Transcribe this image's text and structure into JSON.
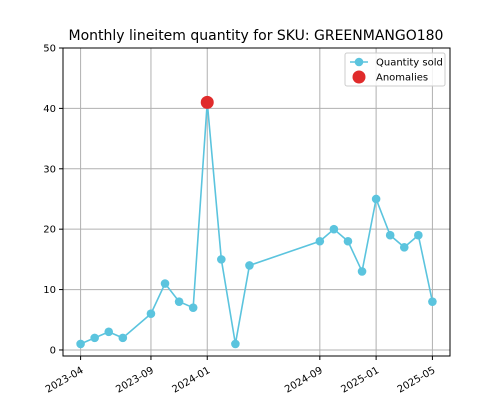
{
  "chart_data": {
    "type": "line",
    "title": "Monthly lineitem quantity for SKU: GREENMANGO180",
    "xlabel": "",
    "ylabel": "",
    "x_ticks": [
      "2023-04",
      "2023-09",
      "2024-01",
      "2024-09",
      "2025-01",
      "2025-05"
    ],
    "y_ticks": [
      0,
      10,
      20,
      30,
      40,
      50
    ],
    "ylim": [
      -1,
      50
    ],
    "grid": true,
    "legend_position": "top-right",
    "series": [
      {
        "name": "Quantity sold",
        "color": "#5bc4de",
        "points": [
          {
            "x": "2023-04",
            "y": 1
          },
          {
            "x": "2023-05",
            "y": 2
          },
          {
            "x": "2023-06",
            "y": 3
          },
          {
            "x": "2023-07",
            "y": 2
          },
          {
            "x": "2023-09",
            "y": 6
          },
          {
            "x": "2023-10",
            "y": 11
          },
          {
            "x": "2023-11",
            "y": 8
          },
          {
            "x": "2023-12",
            "y": 7
          },
          {
            "x": "2024-01",
            "y": 41
          },
          {
            "x": "2024-02",
            "y": 15
          },
          {
            "x": "2024-03",
            "y": 1
          },
          {
            "x": "2024-04",
            "y": 14
          },
          {
            "x": "2024-09",
            "y": 18
          },
          {
            "x": "2024-10",
            "y": 20
          },
          {
            "x": "2024-11",
            "y": 18
          },
          {
            "x": "2024-12",
            "y": 13
          },
          {
            "x": "2025-01",
            "y": 25
          },
          {
            "x": "2025-02",
            "y": 19
          },
          {
            "x": "2025-03",
            "y": 17
          },
          {
            "x": "2025-04",
            "y": 19
          },
          {
            "x": "2025-05",
            "y": 8
          }
        ]
      },
      {
        "name": "Anomalies",
        "color": "#e02b2b",
        "points": [
          {
            "x": "2024-01",
            "y": 41
          }
        ]
      }
    ]
  }
}
